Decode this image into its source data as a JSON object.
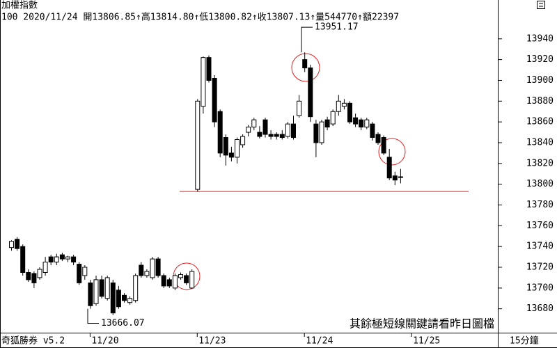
{
  "chart_data": {
    "type": "candlestick",
    "title": "加權指數",
    "subtitle": "100 2020/11/24 開13806.85↑高13814.80↑低13800.82↑收13807.13↑量544770↑額22397",
    "footer_left": "奇狐勝券 v5.2",
    "footer_right": "15分鐘",
    "note": "其餘極短線關鍵請看昨日圖檔",
    "annotations": [
      13951.17,
      13666.07
    ],
    "reference_line": 13793,
    "reference_color": "#e02020",
    "note_color": "#e02020",
    "up_color": "#ffffff",
    "down_color": "#000000",
    "ylim": [
      13657,
      13964
    ],
    "yticks": [
      13680,
      13700,
      13720,
      13740,
      13760,
      13780,
      13800,
      13820,
      13840,
      13860,
      13880,
      13900,
      13920,
      13940
    ],
    "categories": [
      null,
      null,
      null,
      null,
      null,
      null,
      null,
      null,
      null,
      null,
      null,
      null,
      null,
      null,
      "11/20",
      null,
      null,
      null,
      null,
      null,
      null,
      null,
      null,
      null,
      null,
      null,
      null,
      null,
      null,
      null,
      null,
      null,
      null,
      "11/23",
      null,
      null,
      null,
      null,
      null,
      null,
      null,
      null,
      null,
      null,
      null,
      null,
      null,
      null,
      null,
      null,
      null,
      null,
      "11/24",
      null,
      null,
      null,
      null,
      null,
      null,
      null,
      null,
      null,
      null,
      null,
      null,
      null,
      null,
      null,
      null,
      null,
      null,
      "11/25"
    ],
    "open": [
      13739,
      13747,
      13740,
      13715,
      13714,
      13710,
      13715,
      13730,
      13725,
      13732,
      13728,
      13730,
      13723,
      13712,
      13705,
      13685,
      13708,
      13690,
      13705,
      13698,
      13693,
      13686,
      13688,
      13722,
      13712,
      13710,
      13728,
      13712,
      13708,
      13700,
      13710,
      13712,
      13700,
      13795,
      13875,
      13922,
      13902,
      13870,
      13845,
      13830,
      13826,
      13838,
      13850,
      13855,
      13850,
      13862,
      13848,
      13848,
      13848,
      13846,
      13858,
      13866,
      13920,
      13912,
      13858,
      13840,
      13862,
      13858,
      13870,
      13875,
      13878,
      13864,
      13862,
      13855,
      13858,
      13848,
      13845,
      13826,
      13808,
      13806.85,
      null,
      null
    ],
    "high": [
      13746,
      13749,
      13742,
      13718,
      13716,
      13720,
      13730,
      13732,
      13733,
      13734,
      13731,
      13732,
      13725,
      13722,
      13708,
      13712,
      13712,
      13712,
      13708,
      13702,
      13695,
      13692,
      13714,
      13725,
      13718,
      13730,
      13730,
      13714,
      13710,
      13714,
      13715,
      13714,
      13718,
      13882,
      13923,
      13924,
      13905,
      13872,
      13848,
      13836,
      13845,
      13848,
      13857,
      13864,
      13856,
      13864,
      13852,
      13850,
      13852,
      13860,
      13866,
      13886,
      13927,
      13915,
      13862,
      13862,
      13865,
      13872,
      13886,
      13882,
      13880,
      13868,
      13864,
      13864,
      13860,
      13850,
      13847,
      13834,
      13812,
      13814.8,
      null,
      null
    ],
    "low": [
      13736,
      13736,
      13712,
      13706,
      13700,
      13708,
      13712,
      13722,
      13722,
      13726,
      13725,
      13722,
      13703,
      13708,
      13680,
      13683,
      13690,
      13688,
      13674,
      13680,
      13686,
      13684,
      13686,
      13710,
      13710,
      13708,
      13710,
      13700,
      13700,
      13698,
      13708,
      13703,
      13699,
      13793,
      13868,
      13898,
      13855,
      13826,
      13818,
      13822,
      13820,
      13835,
      13846,
      13852,
      13844,
      13845,
      13843,
      13843,
      13843,
      13844,
      13843,
      13864,
      13908,
      13860,
      13826,
      13838,
      13852,
      13856,
      13866,
      13872,
      13858,
      13855,
      13852,
      13853,
      13842,
      13838,
      13828,
      13804,
      13799,
      13800.82,
      null,
      null
    ],
    "close": [
      13745,
      13738,
      13715,
      13708,
      13705,
      13718,
      13725,
      13725,
      13730,
      13728,
      13730,
      13725,
      13705,
      13720,
      13683,
      13708,
      13692,
      13710,
      13676,
      13682,
      13688,
      13690,
      13712,
      13712,
      13716,
      13728,
      13712,
      13702,
      13702,
      13712,
      13713,
      13705,
      13716,
      13880,
      13922,
      13900,
      13860,
      13830,
      13828,
      13826,
      13843,
      13846,
      13855,
      13862,
      13846,
      13848,
      13846,
      13846,
      13845,
      13858,
      13845,
      13880,
      13912,
      13865,
      13840,
      13860,
      13855,
      13870,
      13880,
      13878,
      13860,
      13858,
      13855,
      13862,
      13845,
      13840,
      13830,
      13806,
      13804,
      13807.13,
      null,
      null
    ]
  }
}
